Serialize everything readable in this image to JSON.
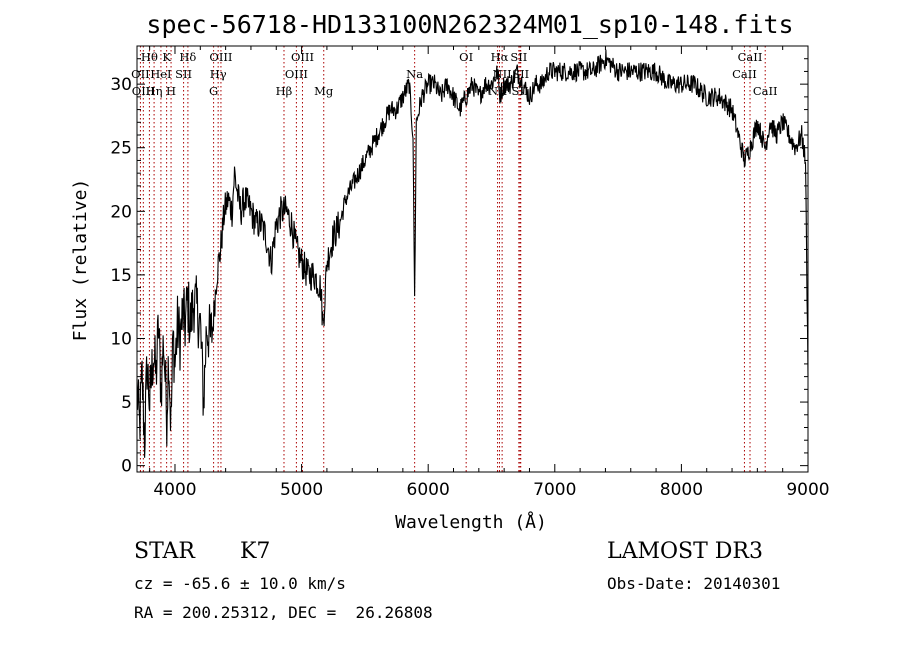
{
  "chart_data": {
    "type": "line",
    "title": "spec-56718-HD133100N262324M01_sp10-148.fits",
    "xlabel": "Wavelength (Å)",
    "ylabel": "Flux (relative)",
    "xlim": [
      3700,
      9000
    ],
    "ylim": [
      -0.5,
      33
    ],
    "xticks": [
      4000,
      5000,
      6000,
      7000,
      8000,
      9000
    ],
    "yticks": [
      0,
      5,
      10,
      15,
      20,
      25,
      30
    ],
    "series_color": "#000000",
    "line_color": "#aa0000",
    "anchors": [
      [
        3700,
        6
      ],
      [
        3720,
        3
      ],
      [
        3740,
        7
      ],
      [
        3760,
        2
      ],
      [
        3780,
        8
      ],
      [
        3800,
        5
      ],
      [
        3830,
        9
      ],
      [
        3850,
        7
      ],
      [
        3870,
        11
      ],
      [
        3890,
        6
      ],
      [
        3910,
        10
      ],
      [
        3935,
        4
      ],
      [
        3950,
        9
      ],
      [
        3968,
        3
      ],
      [
        3985,
        10
      ],
      [
        4000,
        8
      ],
      [
        4020,
        11
      ],
      [
        4040,
        10
      ],
      [
        4060,
        12
      ],
      [
        4080,
        11
      ],
      [
        4100,
        13
      ],
      [
        4120,
        11
      ],
      [
        4150,
        13
      ],
      [
        4180,
        12
      ],
      [
        4200,
        11
      ],
      [
        4226,
        5
      ],
      [
        4250,
        11
      ],
      [
        4280,
        10
      ],
      [
        4300,
        11
      ],
      [
        4330,
        15
      ],
      [
        4360,
        17
      ],
      [
        4390,
        20
      ],
      [
        4420,
        21
      ],
      [
        4450,
        20
      ],
      [
        4470,
        23
      ],
      [
        4500,
        21
      ],
      [
        4520,
        20
      ],
      [
        4550,
        21
      ],
      [
        4600,
        20
      ],
      [
        4640,
        19
      ],
      [
        4680,
        19
      ],
      [
        4720,
        18
      ],
      [
        4760,
        16
      ],
      [
        4800,
        19
      ],
      [
        4840,
        20
      ],
      [
        4880,
        20
      ],
      [
        4920,
        19
      ],
      [
        4960,
        17
      ],
      [
        5000,
        16
      ],
      [
        5050,
        15
      ],
      [
        5100,
        15
      ],
      [
        5150,
        14
      ],
      [
        5170,
        11
      ],
      [
        5200,
        16
      ],
      [
        5250,
        18
      ],
      [
        5300,
        19
      ],
      [
        5350,
        21
      ],
      [
        5400,
        22
      ],
      [
        5450,
        23
      ],
      [
        5500,
        24
      ],
      [
        5550,
        25
      ],
      [
        5600,
        26
      ],
      [
        5650,
        27
      ],
      [
        5700,
        28
      ],
      [
        5750,
        28
      ],
      [
        5800,
        29
      ],
      [
        5850,
        30
      ],
      [
        5880,
        26
      ],
      [
        5893,
        13
      ],
      [
        5906,
        27
      ],
      [
        5950,
        29
      ],
      [
        6000,
        30
      ],
      [
        6050,
        30
      ],
      [
        6100,
        29
      ],
      [
        6150,
        30
      ],
      [
        6200,
        29
      ],
      [
        6250,
        28
      ],
      [
        6300,
        29
      ],
      [
        6350,
        30
      ],
      [
        6400,
        29
      ],
      [
        6450,
        30
      ],
      [
        6500,
        30
      ],
      [
        6550,
        31
      ],
      [
        6563,
        29
      ],
      [
        6600,
        30
      ],
      [
        6650,
        30
      ],
      [
        6700,
        31
      ],
      [
        6750,
        30
      ],
      [
        6800,
        29
      ],
      [
        6850,
        30
      ],
      [
        6900,
        30
      ],
      [
        6950,
        31
      ],
      [
        7000,
        31
      ],
      [
        7100,
        31
      ],
      [
        7200,
        31
      ],
      [
        7300,
        31
      ],
      [
        7400,
        32
      ],
      [
        7500,
        31
      ],
      [
        7600,
        31
      ],
      [
        7700,
        31
      ],
      [
        7800,
        31
      ],
      [
        7900,
        30
      ],
      [
        8000,
        30
      ],
      [
        8100,
        30
      ],
      [
        8200,
        29
      ],
      [
        8300,
        29
      ],
      [
        8400,
        28
      ],
      [
        8498,
        24
      ],
      [
        8542,
        25
      ],
      [
        8600,
        27
      ],
      [
        8662,
        25
      ],
      [
        8700,
        27
      ],
      [
        8750,
        26
      ],
      [
        8800,
        27
      ],
      [
        8850,
        26
      ],
      [
        8900,
        25
      ],
      [
        8950,
        26
      ],
      [
        8980,
        24
      ],
      [
        9000,
        7
      ]
    ],
    "spectral_lines": [
      {
        "label": "Hθ",
        "wl": 3798,
        "row": 0
      },
      {
        "label": "OII",
        "wl": 3727,
        "row": 1
      },
      {
        "label": "OIII",
        "wl": 3750,
        "row": 2
      },
      {
        "label": "K",
        "wl": 3934,
        "row": 0
      },
      {
        "label": "HeI",
        "wl": 3889,
        "row": 1
      },
      {
        "label": "Hη",
        "wl": 3835,
        "row": 2
      },
      {
        "label": "H",
        "wl": 3969,
        "row": 2
      },
      {
        "label": "Hδ",
        "wl": 4102,
        "row": 0
      },
      {
        "label": "SII",
        "wl": 4068,
        "row": 1
      },
      {
        "label": "OIII",
        "wl": 4363,
        "row": 0
      },
      {
        "label": "Hγ",
        "wl": 4341,
        "row": 1
      },
      {
        "label": "G",
        "wl": 4305,
        "row": 2
      },
      {
        "label": "Hβ",
        "wl": 4861,
        "row": 2
      },
      {
        "label": "OIII",
        "wl": 5007,
        "row": 0
      },
      {
        "label": "OIII",
        "wl": 4959,
        "row": 1
      },
      {
        "label": "Mg",
        "wl": 5175,
        "row": 2
      },
      {
        "label": "Na",
        "wl": 5893,
        "row": 1
      },
      {
        "label": "OI",
        "wl": 6300,
        "row": 0
      },
      {
        "label": "Hα",
        "wl": 6563,
        "row": 0
      },
      {
        "label": "NII",
        "wl": 6584,
        "row": 1
      },
      {
        "label": "SII",
        "wl": 6716,
        "row": 0
      },
      {
        "label": "SII",
        "wl": 6731,
        "row": 1
      },
      {
        "label": "NII",
        "wl": 6548,
        "row": 2
      },
      {
        "label": "SII",
        "wl": 6725,
        "row": 2
      },
      {
        "label": "CaII",
        "wl": 8542,
        "row": 0
      },
      {
        "label": "CaII",
        "wl": 8498,
        "row": 1
      },
      {
        "label": "CaII",
        "wl": 8662,
        "row": 2
      }
    ]
  },
  "info": {
    "object_class": "STAR",
    "subclass": "K7",
    "survey": "LAMOST DR3",
    "cz": "cz = -65.6 ± 10.0 km/s",
    "obs_date": "Obs-Date: 20140301",
    "coords": "RA = 200.25312, DEC =  26.26808"
  }
}
